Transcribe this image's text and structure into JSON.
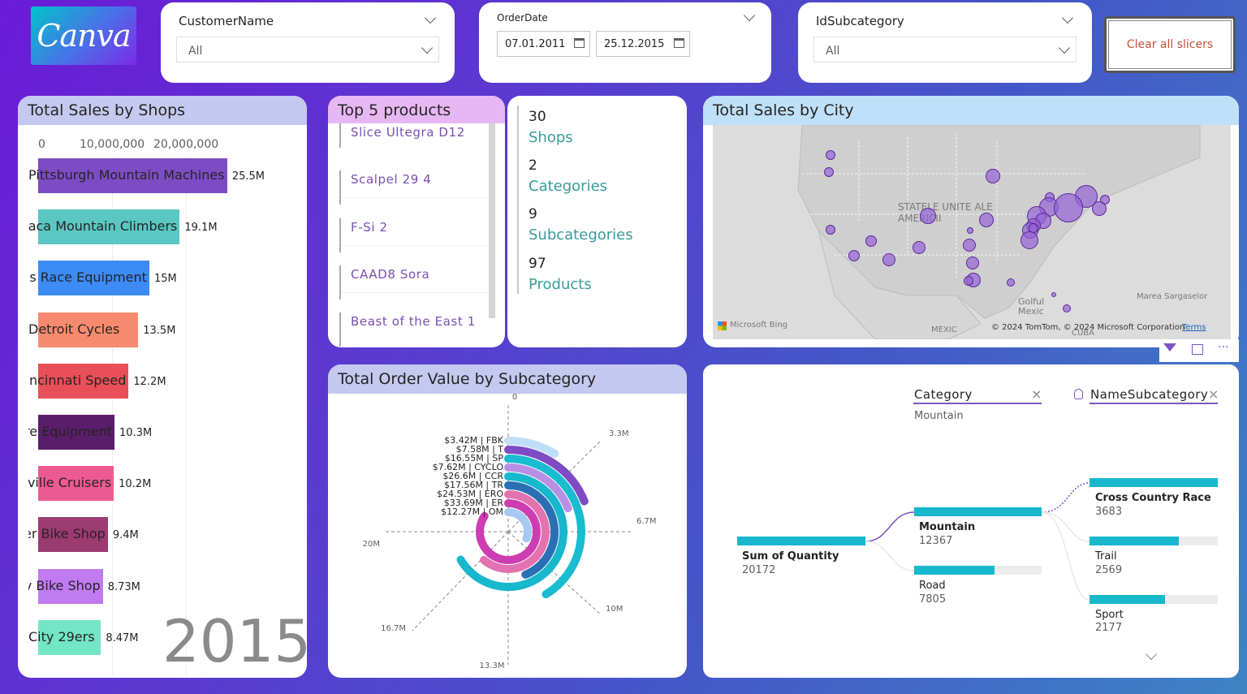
{
  "logo": {
    "text": "Canva"
  },
  "slicers": {
    "customer": {
      "title": "CustomerName",
      "value": "All"
    },
    "orderdate": {
      "title": "OrderDate",
      "start": "07.01.2011",
      "end": "25.12.2015"
    },
    "subcategory": {
      "title": "IdSubcategory",
      "value": "All"
    },
    "clear_label": "Clear all slicers"
  },
  "shops_chart": {
    "title": "Total Sales by Shops",
    "year": "2015",
    "ticks": [
      "0",
      "10,000,000",
      "20,000,000"
    ],
    "bars": [
      {
        "label": "Pittsburgh Mountain Machines",
        "value": 25.5,
        "value_label": "25.5M",
        "color": "#7d4cc5"
      },
      {
        "label": "Ithaca Mountain Climbers",
        "value": 19.1,
        "value_label": "19.1M",
        "color": "#5ac7c2"
      },
      {
        "label": "Columbus Race Equipment",
        "value": 15,
        "value_label": "15M",
        "color": "#3d8bf5"
      },
      {
        "label": "Detroit Cycles",
        "value": 13.5,
        "value_label": "13.5M",
        "color": "#f78a6e"
      },
      {
        "label": "Cincinnati Speed",
        "value": 12.2,
        "value_label": "12.2M",
        "color": "#e84f58"
      },
      {
        "label": "Tyre Equipment",
        "value": 10.3,
        "value_label": "10.3M",
        "color": "#5a1d6b"
      },
      {
        "label": "Louisville Cruisers",
        "value": 10.2,
        "value_label": "10.2M",
        "color": "#ec5a92"
      },
      {
        "label": "Spoker Bike Shop",
        "value": 9.4,
        "value_label": "9.4M",
        "color": "#9c3a72"
      },
      {
        "label": "Cincy Bike Shop",
        "value": 8.73,
        "value_label": "8.73M",
        "color": "#c07bf0"
      },
      {
        "label": "City 29ers",
        "value": 8.47,
        "value_label": "8.47M",
        "color": "#72e6c5"
      }
    ]
  },
  "top5": {
    "title": "Top 5 products",
    "items": [
      "Slice Ultegra D12",
      "Scalpel 29 4",
      "F-Si 2",
      "CAAD8 Sora",
      "Beast of the East 1"
    ]
  },
  "kpis": [
    {
      "num": "30",
      "label": "Shops"
    },
    {
      "num": "2",
      "label": "Categories"
    },
    {
      "num": "9",
      "label": "Subcategories"
    },
    {
      "num": "97",
      "label": "Products"
    }
  ],
  "city_map": {
    "title": "Total Sales by City",
    "country_label": "STATELE UNITE ALE AMERICII",
    "gulf_label": "Golful Mexic",
    "mexic_label": "MEXIC",
    "cuba_label": "CUBA",
    "sargasso_label": "Marea Sargaselor",
    "bing_label": "Microsoft Bing",
    "copyright": "© 2024 TomTom, © 2024 Microsoft Corporation",
    "terms": "Terms"
  },
  "radial_chart": {
    "title": "Total Order Value by Subcategory",
    "axis_ticks": [
      "0",
      "3.3M",
      "6.7M",
      "10M",
      "13.3M",
      "16.7M",
      "20M"
    ],
    "rings": [
      {
        "label": "$3.42M | FBK",
        "value": 3.42,
        "color": "#bfdff8"
      },
      {
        "label": "$7.58M | T",
        "value": 7.58,
        "color": "#7e4bc4"
      },
      {
        "label": "$16.55M | SP",
        "value": 16.55,
        "color": "#19bcd0"
      },
      {
        "label": "$7.62M | CYCLO",
        "value": 7.62,
        "color": "#b98fe6"
      },
      {
        "label": "$26.6M | CCR",
        "value": 26.6,
        "color": "#17b7cc"
      },
      {
        "label": "$17.56M | TR",
        "value": 17.56,
        "color": "#2b6fb3"
      },
      {
        "label": "$24.53M | ERO",
        "value": 24.53,
        "color": "#e272b0"
      },
      {
        "label": "$33.69M | ER",
        "value": 33.69,
        "color": "#cc3db2"
      },
      {
        "label": "$12.27M | OM",
        "value": 12.27,
        "color": "#a7c8f0"
      }
    ]
  },
  "decomp": {
    "col1_header": "Category",
    "col1_value": "Mountain",
    "col2_header": "NameSubcategory",
    "root_label": "Sum of Quantity",
    "root_value": "20172",
    "level1": [
      {
        "label": "Mountain",
        "value": "12367"
      },
      {
        "label": "Road",
        "value": "7805"
      }
    ],
    "level2": [
      {
        "label": "Cross Country Race",
        "value": "3683"
      },
      {
        "label": "Trail",
        "value": "2569"
      },
      {
        "label": "Sport",
        "value": "2177"
      }
    ]
  }
}
